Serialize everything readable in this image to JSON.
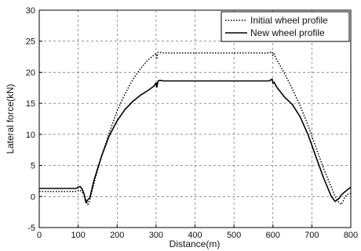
{
  "chart_data": {
    "type": "line",
    "xlabel": "Distance(m)",
    "ylabel": "Lateral force(kN)",
    "xlim": [
      0,
      800
    ],
    "ylim": [
      -5,
      30
    ],
    "xticks": [
      0,
      100,
      200,
      300,
      400,
      500,
      600,
      700,
      800
    ],
    "yticks": [
      -5,
      0,
      5,
      10,
      15,
      20,
      25,
      30
    ],
    "grid": true,
    "legend_position": "top-right",
    "series": [
      {
        "name": "Initial wheel profile",
        "style": "dotted",
        "color": "#000000",
        "x": [
          0,
          95,
          105,
          115,
          120,
          125,
          130,
          140,
          160,
          180,
          200,
          220,
          240,
          260,
          280,
          295,
          300,
          302,
          305,
          310,
          320,
          400,
          500,
          590,
          598,
          600,
          603,
          610,
          630,
          650,
          670,
          690,
          710,
          730,
          750,
          760,
          770,
          775,
          780,
          785,
          790,
          800
        ],
        "y": [
          0.8,
          0.8,
          1.0,
          0.4,
          -0.6,
          -1.3,
          -0.5,
          2.0,
          6.5,
          10.3,
          13.8,
          16.5,
          18.8,
          20.6,
          22.0,
          22.8,
          23.0,
          22.3,
          23.2,
          23.2,
          23.1,
          23.1,
          23.1,
          23.1,
          23.3,
          22.7,
          23.0,
          22.0,
          19.8,
          17.3,
          14.6,
          11.5,
          8.0,
          4.5,
          1.5,
          0.0,
          -1.0,
          -1.3,
          -0.8,
          0.0,
          0.3,
          0.5
        ]
      },
      {
        "name": "New wheel profile",
        "style": "solid",
        "color": "#000000",
        "x": [
          0,
          95,
          100,
          105,
          110,
          115,
          120,
          125,
          130,
          140,
          160,
          180,
          200,
          220,
          240,
          260,
          280,
          295,
          300,
          302,
          305,
          310,
          320,
          400,
          500,
          590,
          598,
          600,
          603,
          610,
          630,
          650,
          670,
          690,
          710,
          730,
          750,
          760,
          770,
          775,
          780,
          790,
          800
        ],
        "y": [
          1.3,
          1.3,
          1.5,
          1.6,
          1.2,
          0.4,
          -1.0,
          -0.5,
          -0.2,
          2.5,
          6.5,
          9.8,
          12.2,
          14.0,
          15.3,
          16.3,
          17.1,
          17.8,
          18.3,
          17.6,
          18.6,
          18.7,
          18.6,
          18.6,
          18.6,
          18.6,
          18.9,
          18.2,
          18.4,
          17.6,
          16.0,
          14.8,
          12.8,
          10.0,
          6.5,
          3.0,
          0.0,
          -0.8,
          -0.3,
          0.2,
          0.5,
          1.0,
          1.5
        ]
      }
    ]
  }
}
